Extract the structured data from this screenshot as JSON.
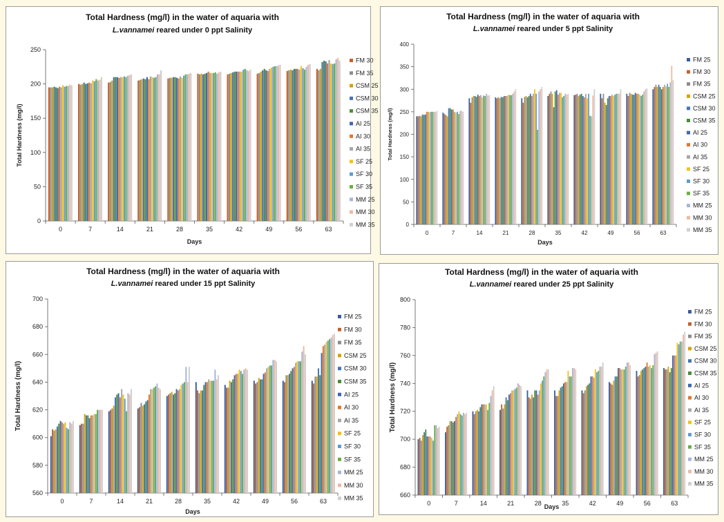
{
  "colors": [
    "#3a5d9c",
    "#c3612a",
    "#8c8c8c",
    "#d6a200",
    "#4574b8",
    "#4b8c35",
    "#3f67b0",
    "#e2752c",
    "#a7a7a7",
    "#f2c314",
    "#5e9bd5",
    "#6aaf44",
    "#a5b5da",
    "#efb8a0",
    "#cfcfcf"
  ],
  "chart_data": [
    {
      "type": "bar",
      "title_line1": "Total Hardness (mg/l) in the water of aquaria with",
      "title_species": "L.vannamei",
      "title_line2_rest": " reared under 0 ppt Salinity",
      "xlabel": "Days",
      "ylabel": "Total Hardness (mg/l)",
      "ylim": [
        0,
        250
      ],
      "yticks": [
        0,
        50,
        100,
        150,
        200,
        250
      ],
      "categories": [
        "0",
        "7",
        "14",
        "21",
        "28",
        "35",
        "42",
        "49",
        "56",
        "63"
      ],
      "series": [
        {
          "name": "FM 30",
          "values": [
            195,
            200,
            202,
            205,
            208,
            215,
            214,
            215,
            219,
            222
          ]
        },
        {
          "name": "FM 35",
          "values": [
            195,
            199,
            203,
            206,
            209,
            214,
            215,
            216,
            220,
            220
          ]
        },
        {
          "name": "CSM 25",
          "values": [
            195,
            200,
            205,
            207,
            209,
            215,
            216,
            218,
            221,
            222
          ]
        },
        {
          "name": "CSM 30",
          "values": [
            196,
            202,
            210,
            208,
            210,
            214,
            217,
            220,
            220,
            232
          ]
        },
        {
          "name": "CSM 35",
          "values": [
            195,
            200,
            210,
            207,
            210,
            215,
            218,
            222,
            222,
            234
          ]
        },
        {
          "name": "AI 25",
          "values": [
            194,
            201,
            210,
            210,
            209,
            216,
            218,
            220,
            222,
            233
          ]
        },
        {
          "name": "AI 30",
          "values": [
            196,
            202,
            209,
            207,
            208,
            218,
            218,
            219,
            222,
            230
          ]
        },
        {
          "name": "AI 35",
          "values": [
            195,
            201,
            210,
            211,
            211,
            216,
            218,
            222,
            221,
            235
          ]
        },
        {
          "name": "SF 25",
          "values": [
            198,
            205,
            210,
            210,
            209,
            216,
            218,
            224,
            226,
            230
          ]
        },
        {
          "name": "SF 30",
          "values": [
            196,
            204,
            211,
            209,
            212,
            216,
            221,
            225,
            223,
            229
          ]
        },
        {
          "name": "SF 35",
          "values": [
            197,
            207,
            210,
            210,
            214,
            217,
            222,
            226,
            221,
            230
          ]
        },
        {
          "name": "MM 25",
          "values": [
            197,
            205,
            212,
            214,
            214,
            215,
            220,
            226,
            225,
            236
          ]
        },
        {
          "name": "MM 30",
          "values": [
            199,
            206,
            213,
            214,
            215,
            217,
            219,
            227,
            228,
            238
          ]
        },
        {
          "name": "MM 35",
          "values": [
            198,
            210,
            214,
            220,
            216,
            218,
            221,
            228,
            229,
            234
          ]
        }
      ]
    },
    {
      "type": "bar",
      "title_line1": "Total Hardness (mg/l) in the water of aquaria with",
      "title_species": "L.vannamei",
      "title_line2_rest": " reared under 5 ppt Salinity",
      "xlabel": "Days",
      "ylabel": "Total Hardness (mg/l)",
      "ylim": [
        0,
        400
      ],
      "yticks": [
        0,
        50,
        100,
        150,
        200,
        250,
        300,
        350,
        400
      ],
      "categories": [
        "0",
        "7",
        "14",
        "21",
        "28",
        "35",
        "42",
        "49",
        "56",
        "63"
      ],
      "series": [
        {
          "name": "FM 25",
          "values": [
            240,
            248,
            280,
            282,
            280,
            285,
            287,
            290,
            290,
            300
          ]
        },
        {
          "name": "FM 30",
          "values": [
            240,
            245,
            270,
            280,
            270,
            290,
            288,
            280,
            285,
            305
          ]
        },
        {
          "name": "FM 35",
          "values": [
            241,
            243,
            282,
            282,
            283,
            295,
            290,
            290,
            292,
            310
          ]
        },
        {
          "name": "CSM 25",
          "values": [
            240,
            240,
            285,
            280,
            285,
            290,
            285,
            270,
            290,
            305
          ]
        },
        {
          "name": "CSM 30",
          "values": [
            244,
            258,
            285,
            283,
            282,
            260,
            288,
            265,
            288,
            310
          ]
        },
        {
          "name": "CSM 35",
          "values": [
            243,
            258,
            283,
            282,
            285,
            295,
            290,
            280,
            288,
            305
          ]
        },
        {
          "name": "AI 25",
          "values": [
            244,
            255,
            288,
            285,
            290,
            298,
            285,
            285,
            292,
            300
          ]
        },
        {
          "name": "AI 30",
          "values": [
            250,
            255,
            285,
            285,
            285,
            288,
            282,
            285,
            290,
            305
          ]
        },
        {
          "name": "AI 35",
          "values": [
            250,
            250,
            287,
            285,
            290,
            292,
            290,
            288,
            290,
            310
          ]
        },
        {
          "name": "SF 25",
          "values": [
            249,
            248,
            282,
            288,
            300,
            292,
            280,
            285,
            288,
            306
          ]
        },
        {
          "name": "SF 30",
          "values": [
            250,
            250,
            286,
            287,
            290,
            282,
            290,
            288,
            285,
            312
          ]
        },
        {
          "name": "SF 35",
          "values": [
            250,
            245,
            285,
            287,
            210,
            285,
            241,
            290,
            288,
            305
          ]
        },
        {
          "name": "MM 25",
          "values": [
            250,
            252,
            290,
            290,
            295,
            290,
            240,
            290,
            295,
            315
          ]
        },
        {
          "name": "MM 30",
          "values": [
            250,
            252,
            286,
            295,
            300,
            288,
            286,
            290,
            300,
            352
          ]
        },
        {
          "name": "MM 35",
          "values": [
            252,
            250,
            287,
            300,
            305,
            290,
            300,
            300,
            302,
            320
          ]
        }
      ]
    },
    {
      "type": "bar",
      "title_line1": "Total Hardness (mg/l) in the water of aquaria with",
      "title_species": "L.vannamei",
      "title_line2_rest": " reared under 15 ppt Salinity",
      "xlabel": "Days",
      "ylabel": "Total Hardness (mg/l)",
      "ylim": [
        560,
        700
      ],
      "yticks": [
        560,
        580,
        600,
        620,
        640,
        660,
        680,
        700
      ],
      "categories": [
        "0",
        "7",
        "14",
        "21",
        "28",
        "35",
        "42",
        "49",
        "56",
        "63"
      ],
      "series": [
        {
          "name": "FM 25",
          "values": [
            601,
            609,
            619,
            621,
            630,
            640,
            638,
            641,
            641,
            641
          ]
        },
        {
          "name": "FM 30",
          "values": [
            606,
            610,
            620,
            622,
            631,
            634,
            636,
            639,
            640,
            639
          ]
        },
        {
          "name": "FM 35",
          "values": [
            605,
            610,
            621,
            625,
            632,
            632,
            636,
            640,
            645,
            644
          ]
        },
        {
          "name": "CSM 25",
          "values": [
            606,
            617,
            623,
            623,
            633,
            634,
            641,
            643,
            645,
            644
          ]
        },
        {
          "name": "CSM 30",
          "values": [
            608,
            616,
            629,
            624,
            631,
            634,
            640,
            642,
            646,
            650
          ]
        },
        {
          "name": "CSM 35",
          "values": [
            610,
            616,
            631,
            626,
            632,
            638,
            642,
            642,
            648,
            645
          ]
        },
        {
          "name": "AI 25",
          "values": [
            612,
            614,
            632,
            627,
            635,
            640,
            645,
            646,
            650,
            661
          ]
        },
        {
          "name": "AI 30",
          "values": [
            611,
            616,
            629,
            631,
            634,
            640,
            646,
            647,
            651,
            666
          ]
        },
        {
          "name": "AI 35",
          "values": [
            610,
            616,
            635,
            635,
            635,
            642,
            646,
            650,
            654,
            667
          ]
        },
        {
          "name": "SF 25",
          "values": [
            611,
            617,
            631,
            635,
            638,
            641,
            649,
            651,
            655,
            669
          ]
        },
        {
          "name": "SF 30",
          "values": [
            607,
            617,
            628,
            636,
            639,
            641,
            648,
            652,
            655,
            670
          ]
        },
        {
          "name": "SF 35",
          "values": [
            606,
            620,
            619,
            637,
            640,
            641,
            646,
            652,
            655,
            671
          ]
        },
        {
          "name": "MM 25",
          "values": [
            611,
            620,
            632,
            639,
            651,
            649,
            649,
            656,
            662,
            672
          ]
        },
        {
          "name": "MM 30",
          "values": [
            610,
            620,
            631,
            636,
            640,
            642,
            650,
            656,
            666,
            674
          ]
        },
        {
          "name": "MM 35",
          "values": [
            612,
            620,
            635,
            635,
            651,
            645,
            649,
            655,
            660,
            675
          ]
        }
      ]
    },
    {
      "type": "bar",
      "title_line1": "Total Hardness (mg/l) in the water of aquaria with",
      "title_species": "L.vannamei",
      "title_line2_rest": " reared under 25 ppt Salinity",
      "xlabel": "Days",
      "ylabel": "Total Hardness (mg/l)",
      "ylim": [
        660,
        800
      ],
      "yticks": [
        660,
        680,
        700,
        720,
        740,
        760,
        780,
        800
      ],
      "categories": [
        "0",
        "7",
        "14",
        "21",
        "28",
        "35",
        "42",
        "49",
        "56",
        "63"
      ],
      "series": [
        {
          "name": "FM 25",
          "values": [
            700,
            705,
            720,
            721,
            735,
            735,
            735,
            741,
            749,
            751
          ]
        },
        {
          "name": "FM 30",
          "values": [
            701,
            709,
            718,
            725,
            730,
            731,
            733,
            740,
            745,
            750
          ]
        },
        {
          "name": "FM 35",
          "values": [
            699,
            710,
            720,
            722,
            729,
            731,
            735,
            739,
            746,
            750
          ]
        },
        {
          "name": "CSM 25",
          "values": [
            703,
            713,
            721,
            725,
            732,
            735,
            738,
            742,
            749,
            752
          ]
        },
        {
          "name": "CSM 30",
          "values": [
            705,
            713,
            720,
            730,
            730,
            737,
            739,
            745,
            750,
            748
          ]
        },
        {
          "name": "CSM 35",
          "values": [
            707,
            712,
            723,
            728,
            735,
            738,
            740,
            745,
            751,
            751
          ]
        },
        {
          "name": "AI 25",
          "values": [
            702,
            713,
            725,
            732,
            735,
            740,
            745,
            751,
            752,
            760
          ]
        },
        {
          "name": "AI 30",
          "values": [
            702,
            716,
            725,
            733,
            732,
            741,
            745,
            751,
            755,
            760
          ]
        },
        {
          "name": "AI 35",
          "values": [
            702,
            718,
            725,
            735,
            735,
            741,
            744,
            750,
            752,
            760
          ]
        },
        {
          "name": "SF 25",
          "values": [
            701,
            720,
            725,
            735,
            740,
            749,
            750,
            750,
            753,
            769
          ]
        },
        {
          "name": "SF 30",
          "values": [
            699,
            718,
            721,
            736,
            742,
            745,
            748,
            750,
            751,
            768
          ]
        },
        {
          "name": "SF 35",
          "values": [
            710,
            717,
            726,
            737,
            745,
            745,
            749,
            752,
            753,
            770
          ]
        },
        {
          "name": "MM 25",
          "values": [
            710,
            719,
            731,
            740,
            748,
            751,
            752,
            755,
            761,
            770
          ]
        },
        {
          "name": "MM 30",
          "values": [
            708,
            718,
            735,
            739,
            750,
            751,
            752,
            755,
            762,
            775
          ]
        },
        {
          "name": "MM 35",
          "values": [
            709,
            719,
            738,
            738,
            750,
            750,
            755,
            753,
            763,
            777
          ]
        }
      ]
    }
  ]
}
